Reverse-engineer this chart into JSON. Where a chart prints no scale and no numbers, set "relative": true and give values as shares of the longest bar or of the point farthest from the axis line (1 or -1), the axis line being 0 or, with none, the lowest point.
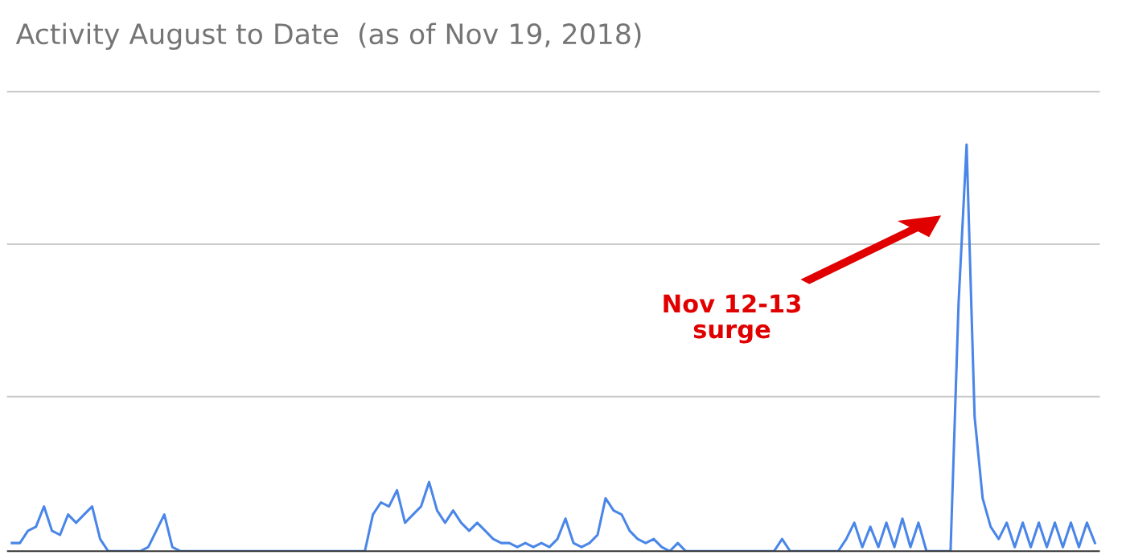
{
  "chart_data": {
    "type": "line",
    "title": "Activity August to Date  (as of Nov 19, 2018)",
    "relative": true,
    "legend": false,
    "ref_lines": [
      {
        "axis": "y",
        "value": 0.38,
        "color": "#cccccc"
      },
      {
        "axis": "y",
        "value": 0.755,
        "color": "#cccccc"
      },
      {
        "axis": "y",
        "value": 1.13,
        "color": "#cccccc"
      }
    ],
    "categories": [
      null,
      null,
      null,
      null,
      null,
      null,
      null,
      null,
      null,
      null,
      null,
      null,
      null,
      null,
      null,
      null,
      null,
      null,
      null,
      null,
      null,
      null,
      null,
      null,
      null,
      null,
      null,
      null,
      null,
      null,
      null,
      null,
      null,
      null,
      null,
      null,
      null,
      null,
      null,
      null,
      null,
      null,
      null,
      null,
      null,
      null,
      null,
      null,
      null,
      null,
      null,
      null,
      null,
      null,
      null,
      null,
      null,
      null,
      null,
      null,
      null,
      null,
      null,
      null,
      null,
      null,
      null,
      null,
      null,
      null,
      null,
      null,
      null,
      null,
      null,
      null,
      null,
      null,
      null,
      null,
      null,
      null,
      null,
      null,
      null,
      null,
      null,
      null,
      null,
      null,
      null,
      null,
      null,
      null,
      null,
      null,
      null,
      null,
      null,
      null,
      null,
      null,
      null,
      null,
      null,
      null,
      null,
      null,
      null,
      null,
      null,
      null,
      null,
      null,
      null,
      null,
      null,
      null,
      null,
      null,
      null,
      null,
      null,
      null,
      null,
      null,
      null,
      null,
      null,
      null,
      null,
      null,
      null,
      null,
      null,
      null
    ],
    "series": [
      {
        "color": "#4a86e8",
        "values": [
          0.02,
          0.02,
          0.05,
          0.06,
          0.11,
          0.05,
          0.04,
          0.09,
          0.07,
          0.09,
          0.11,
          0.03,
          0,
          0,
          0,
          0,
          0,
          0.01,
          0.05,
          0.09,
          0.01,
          0,
          0,
          0,
          0,
          0,
          0,
          0,
          0,
          0,
          0,
          0,
          0,
          0,
          0,
          0,
          0,
          0,
          0,
          0,
          0,
          0,
          0,
          0,
          0,
          0.09,
          0.12,
          0.11,
          0.15,
          0.07,
          0.09,
          0.11,
          0.17,
          0.1,
          0.07,
          0.1,
          0.07,
          0.05,
          0.07,
          0.05,
          0.03,
          0.02,
          0.02,
          0.01,
          0.02,
          0.01,
          0.02,
          0.01,
          0.03,
          0.08,
          0.02,
          0.01,
          0.02,
          0.04,
          0.13,
          0.1,
          0.09,
          0.05,
          0.03,
          0.02,
          0.03,
          0.01,
          0,
          0.02,
          0,
          0,
          0,
          0,
          0,
          0,
          0,
          0,
          0,
          0,
          0,
          0,
          0.03,
          0,
          0,
          0,
          0,
          0,
          0,
          0,
          0.03,
          0.07,
          0.01,
          0.06,
          0.01,
          0.07,
          0.01,
          0.08,
          0.01,
          0.07,
          0,
          0,
          0,
          0,
          0.61,
          1,
          0.33,
          0.13,
          0.06,
          0.03,
          0.07,
          0.01,
          0.07,
          0.01,
          0.07,
          0.01,
          0.07,
          0.01,
          0.07,
          0.01,
          0.07,
          0.02
        ]
      }
    ],
    "annotations": [
      "Nov 12-13\nsurge"
    ]
  }
}
